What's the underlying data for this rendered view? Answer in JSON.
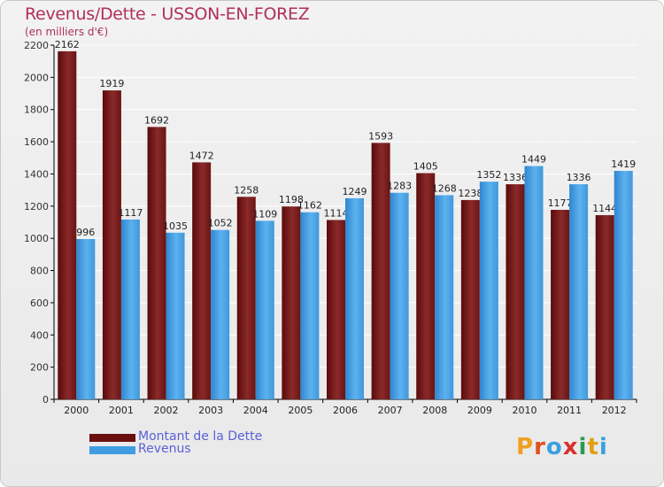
{
  "header": {
    "title": "Revenus/Dette - USSON-EN-FOREZ",
    "subtitle": "(en milliers d'€)"
  },
  "colors": {
    "dette": "#7a1c1c",
    "revenus": "#4aa3e6",
    "title": "#b0305a",
    "legend_text": "#5a60d8"
  },
  "legend": {
    "items": [
      {
        "label": "Montant de la Dette",
        "color": "#6b1010"
      },
      {
        "label": "Revenus",
        "color": "#3f9ee3"
      }
    ]
  },
  "logo": {
    "text": "Proxiti",
    "letters": [
      "P",
      "r",
      "o",
      "x",
      "i",
      "t",
      "i"
    ],
    "colors": [
      "#f0a020",
      "#e05020",
      "#3aa0e0",
      "#d83030",
      "#2a9a50",
      "#e0a010",
      "#3aa0e0"
    ]
  },
  "chart_data": {
    "type": "bar",
    "categories": [
      "2000",
      "2001",
      "2002",
      "2003",
      "2004",
      "2005",
      "2006",
      "2007",
      "2008",
      "2009",
      "2010",
      "2011",
      "2012"
    ],
    "series": [
      {
        "name": "Montant de la Dette",
        "values": [
          2162,
          1919,
          1692,
          1472,
          1258,
          1198,
          1114,
          1593,
          1405,
          1238,
          1336,
          1177,
          1144
        ]
      },
      {
        "name": "Revenus",
        "values": [
          996,
          1117,
          1035,
          1052,
          1109,
          1162,
          1249,
          1283,
          1268,
          1352,
          1449,
          1336,
          1419
        ]
      }
    ],
    "ylim": [
      0,
      2200
    ],
    "yticks": [
      0,
      200,
      400,
      600,
      800,
      1000,
      1200,
      1400,
      1600,
      1800,
      2000,
      2200
    ],
    "grid": true,
    "legend_position": "bottom-left"
  }
}
